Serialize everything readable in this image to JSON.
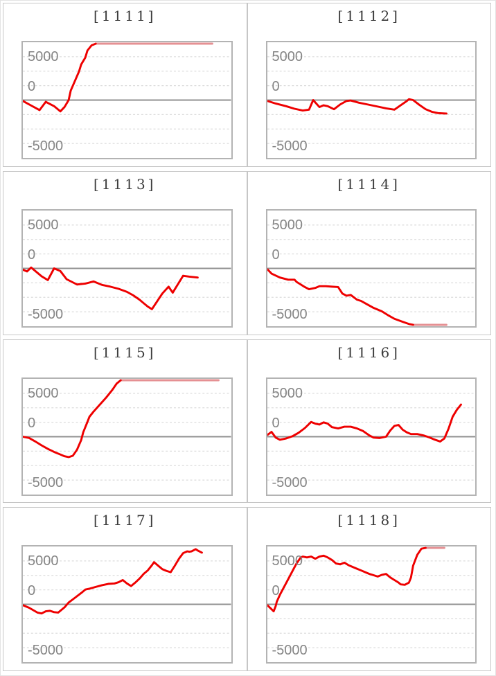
{
  "axis": {
    "y_tick_labels": [
      "5000",
      "0",
      "-5000"
    ],
    "grid_values": [
      4995,
      3330,
      1665,
      -1665,
      -3330,
      -4995
    ],
    "ylim": [
      -6660,
      6660
    ],
    "zero_line": true,
    "grid_style": "dashed"
  },
  "colors": {
    "line": "#ee0000",
    "line_capped": "#e59093",
    "zero_line": "#909090",
    "grid_line": "#dcdcdc",
    "axis_label": "#858585",
    "title": "#3c3c3c",
    "plot_border": "#b3b3b3",
    "cell_border": "#c6c6c6",
    "background": "#ffffff"
  },
  "chart_data": [
    {
      "type": "line",
      "title": "[1111]",
      "id": "1111",
      "points": [
        [
          0,
          -100
        ],
        [
          3,
          -500
        ],
        [
          8,
          -1150
        ],
        [
          11,
          -200
        ],
        [
          15,
          -700
        ],
        [
          18,
          -1300
        ],
        [
          20,
          -800
        ],
        [
          22,
          0
        ],
        [
          23,
          1100
        ],
        [
          25,
          2200
        ],
        [
          27,
          3300
        ],
        [
          28,
          4100
        ],
        [
          30,
          4900
        ],
        [
          31,
          5700
        ],
        [
          33,
          6300
        ],
        [
          35,
          6500
        ]
      ],
      "cap": {
        "from": 35,
        "to": 91,
        "value": 6500
      }
    },
    {
      "type": "line",
      "title": "[1112]",
      "id": "1112",
      "points": [
        [
          0,
          -100
        ],
        [
          4,
          -400
        ],
        [
          9,
          -700
        ],
        [
          13,
          -1000
        ],
        [
          17,
          -1200
        ],
        [
          20,
          -1100
        ],
        [
          22,
          0
        ],
        [
          25,
          -800
        ],
        [
          27,
          -600
        ],
        [
          29,
          -700
        ],
        [
          32,
          -1050
        ],
        [
          35,
          -500
        ],
        [
          38,
          -100
        ],
        [
          40,
          -50
        ],
        [
          44,
          -300
        ],
        [
          48,
          -500
        ],
        [
          53,
          -750
        ],
        [
          57,
          -950
        ],
        [
          61,
          -1100
        ],
        [
          64,
          -600
        ],
        [
          67,
          -100
        ],
        [
          68,
          100
        ],
        [
          70,
          0
        ],
        [
          73,
          -550
        ],
        [
          76,
          -1050
        ],
        [
          79,
          -1350
        ],
        [
          82,
          -1500
        ],
        [
          86,
          -1550
        ]
      ],
      "cap": null
    },
    {
      "type": "line",
      "title": "[1113]",
      "id": "1113",
      "points": [
        [
          0,
          -150
        ],
        [
          2,
          -350
        ],
        [
          4,
          100
        ],
        [
          9,
          -900
        ],
        [
          12,
          -1350
        ],
        [
          15,
          0
        ],
        [
          18,
          -300
        ],
        [
          21,
          -1250
        ],
        [
          26,
          -1850
        ],
        [
          30,
          -1750
        ],
        [
          34,
          -1500
        ],
        [
          38,
          -1900
        ],
        [
          42,
          -2100
        ],
        [
          46,
          -2350
        ],
        [
          50,
          -2700
        ],
        [
          53,
          -3100
        ],
        [
          56,
          -3600
        ],
        [
          58,
          -4000
        ],
        [
          60,
          -4400
        ],
        [
          62,
          -4700
        ],
        [
          67,
          -2900
        ],
        [
          70,
          -2100
        ],
        [
          72,
          -2800
        ],
        [
          77,
          -850
        ],
        [
          80,
          -950
        ],
        [
          84,
          -1050
        ]
      ],
      "cap": null
    },
    {
      "type": "line",
      "title": "[1114]",
      "id": "1114",
      "points": [
        [
          0,
          -100
        ],
        [
          2,
          -600
        ],
        [
          6,
          -1050
        ],
        [
          10,
          -1300
        ],
        [
          13,
          -1300
        ],
        [
          14,
          -1550
        ],
        [
          18,
          -2150
        ],
        [
          20,
          -2400
        ],
        [
          23,
          -2250
        ],
        [
          25,
          -2050
        ],
        [
          28,
          -2050
        ],
        [
          31,
          -2100
        ],
        [
          34,
          -2150
        ],
        [
          36,
          -2900
        ],
        [
          38,
          -3150
        ],
        [
          40,
          -3050
        ],
        [
          43,
          -3600
        ],
        [
          45,
          -3750
        ],
        [
          48,
          -4150
        ],
        [
          51,
          -4550
        ],
        [
          55,
          -4950
        ],
        [
          58,
          -5400
        ],
        [
          61,
          -5800
        ],
        [
          65,
          -6150
        ],
        [
          68,
          -6400
        ],
        [
          70,
          -6500
        ]
      ],
      "cap": {
        "from": 70,
        "to": 86,
        "value": -6500
      }
    },
    {
      "type": "line",
      "title": "[1115]",
      "id": "1115",
      "points": [
        [
          0,
          0
        ],
        [
          3,
          -150
        ],
        [
          6,
          -550
        ],
        [
          9,
          -1000
        ],
        [
          12,
          -1400
        ],
        [
          15,
          -1750
        ],
        [
          18,
          -2050
        ],
        [
          20,
          -2250
        ],
        [
          22,
          -2350
        ],
        [
          24,
          -2200
        ],
        [
          26,
          -1500
        ],
        [
          28,
          -400
        ],
        [
          29,
          500
        ],
        [
          31,
          1700
        ],
        [
          32,
          2300
        ],
        [
          34,
          2900
        ],
        [
          37,
          3700
        ],
        [
          40,
          4500
        ],
        [
          43,
          5400
        ],
        [
          45,
          6100
        ],
        [
          47,
          6500
        ]
      ],
      "cap": {
        "from": 47,
        "to": 94,
        "value": 6500
      }
    },
    {
      "type": "line",
      "title": "[1116]",
      "id": "1116",
      "points": [
        [
          0,
          200
        ],
        [
          2,
          550
        ],
        [
          4,
          -100
        ],
        [
          6,
          -350
        ],
        [
          9,
          -200
        ],
        [
          12,
          50
        ],
        [
          15,
          450
        ],
        [
          18,
          1000
        ],
        [
          21,
          1700
        ],
        [
          23,
          1500
        ],
        [
          25,
          1400
        ],
        [
          27,
          1650
        ],
        [
          29,
          1500
        ],
        [
          31,
          1100
        ],
        [
          34,
          950
        ],
        [
          37,
          1150
        ],
        [
          40,
          1150
        ],
        [
          43,
          950
        ],
        [
          46,
          650
        ],
        [
          49,
          150
        ],
        [
          51,
          -100
        ],
        [
          54,
          -150
        ],
        [
          57,
          0
        ],
        [
          59,
          700
        ],
        [
          61,
          1250
        ],
        [
          63,
          1350
        ],
        [
          65,
          800
        ],
        [
          67,
          500
        ],
        [
          69,
          300
        ],
        [
          72,
          300
        ],
        [
          75,
          150
        ],
        [
          78,
          -100
        ],
        [
          80,
          -300
        ],
        [
          83,
          -550
        ],
        [
          85,
          -200
        ],
        [
          87,
          900
        ],
        [
          89,
          2300
        ],
        [
          91,
          3100
        ],
        [
          93,
          3700
        ]
      ],
      "cap": null
    },
    {
      "type": "line",
      "title": "[1117]",
      "id": "1117",
      "points": [
        [
          0,
          -100
        ],
        [
          3,
          -400
        ],
        [
          7,
          -950
        ],
        [
          9,
          -1050
        ],
        [
          11,
          -800
        ],
        [
          13,
          -750
        ],
        [
          15,
          -900
        ],
        [
          17,
          -950
        ],
        [
          20,
          -350
        ],
        [
          22,
          200
        ],
        [
          25,
          750
        ],
        [
          28,
          1300
        ],
        [
          30,
          1700
        ],
        [
          32,
          1800
        ],
        [
          35,
          2000
        ],
        [
          38,
          2200
        ],
        [
          41,
          2350
        ],
        [
          44,
          2400
        ],
        [
          46,
          2550
        ],
        [
          48,
          2800
        ],
        [
          50,
          2400
        ],
        [
          52,
          2100
        ],
        [
          54,
          2500
        ],
        [
          56,
          2950
        ],
        [
          58,
          3500
        ],
        [
          60,
          3900
        ],
        [
          62,
          4500
        ],
        [
          63,
          4850
        ],
        [
          65,
          4450
        ],
        [
          67,
          4050
        ],
        [
          69,
          3850
        ],
        [
          71,
          3700
        ],
        [
          73,
          4450
        ],
        [
          75,
          5250
        ],
        [
          77,
          5900
        ],
        [
          79,
          6100
        ],
        [
          80,
          6050
        ],
        [
          81,
          6100
        ],
        [
          83,
          6350
        ],
        [
          84,
          6200
        ],
        [
          86,
          5950
        ]
      ],
      "cap": null
    },
    {
      "type": "line",
      "title": "[1118]",
      "id": "1118",
      "points": [
        [
          0,
          -100
        ],
        [
          1.5,
          -450
        ],
        [
          3,
          -800
        ],
        [
          4,
          -200
        ],
        [
          4.5,
          300
        ],
        [
          6,
          1100
        ],
        [
          8,
          2000
        ],
        [
          10,
          2900
        ],
        [
          12,
          3800
        ],
        [
          14,
          4700
        ],
        [
          16,
          5400
        ],
        [
          17,
          5500
        ],
        [
          19,
          5400
        ],
        [
          21,
          5500
        ],
        [
          23,
          5250
        ],
        [
          25,
          5500
        ],
        [
          27,
          5600
        ],
        [
          29,
          5400
        ],
        [
          31,
          5100
        ],
        [
          33,
          4700
        ],
        [
          35,
          4600
        ],
        [
          37,
          4800
        ],
        [
          39,
          4500
        ],
        [
          41,
          4300
        ],
        [
          43,
          4100
        ],
        [
          45,
          3900
        ],
        [
          47,
          3700
        ],
        [
          49,
          3500
        ],
        [
          51,
          3350
        ],
        [
          53,
          3200
        ],
        [
          55,
          3400
        ],
        [
          57,
          3500
        ],
        [
          59,
          3100
        ],
        [
          61,
          2800
        ],
        [
          63,
          2500
        ],
        [
          64,
          2300
        ],
        [
          66,
          2250
        ],
        [
          68,
          2500
        ],
        [
          69,
          3100
        ],
        [
          70,
          4450
        ],
        [
          72,
          5700
        ],
        [
          74,
          6400
        ],
        [
          76,
          6500
        ]
      ],
      "cap": {
        "from": 76,
        "to": 85,
        "value": 6500
      }
    }
  ]
}
